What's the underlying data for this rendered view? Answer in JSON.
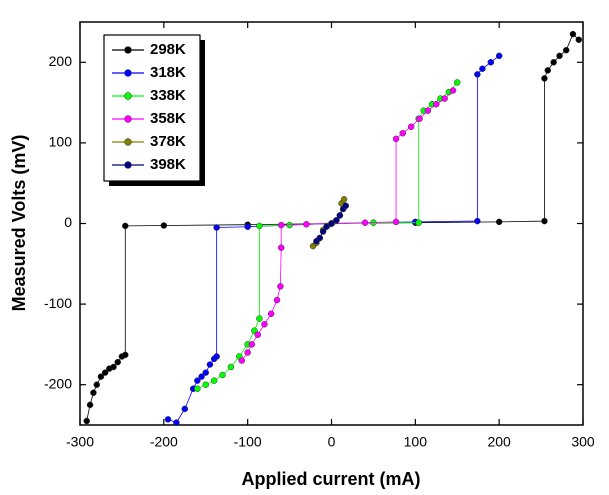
{
  "chart_data": {
    "type": "line",
    "x_label": "Applied current (mA)",
    "y_label": "Measured Volts (mV)",
    "xlim": [
      -300,
      300
    ],
    "xticks": [
      -300,
      -200,
      -100,
      0,
      100,
      200,
      300
    ],
    "ylim": [
      -250,
      250
    ],
    "yticks": [
      -200,
      -100,
      0,
      100,
      200
    ],
    "legend_position": "upper left",
    "series": [
      {
        "name": "298K",
        "color": "#000000",
        "x": [
          -292,
          -288,
          -284,
          -280,
          -275,
          -270,
          -265,
          -260,
          -255,
          -250,
          -246,
          -246,
          -200,
          -100,
          0,
          100,
          200,
          254,
          254,
          258,
          265,
          272,
          280,
          288,
          295
        ],
        "y": [
          -245,
          -225,
          -210,
          -200,
          -190,
          -185,
          -180,
          -178,
          -172,
          -165,
          -163,
          -3,
          -2.5,
          -1.5,
          0,
          1,
          2,
          3,
          180,
          190,
          200,
          208,
          215,
          235,
          228
        ]
      },
      {
        "name": "318K",
        "color": "#0000ff",
        "x": [
          -195,
          -185,
          -175,
          -165,
          -160,
          -155,
          -150,
          -145,
          -140,
          -137,
          -137,
          -100,
          0,
          100,
          174,
          174,
          180,
          190,
          200
        ],
        "y": [
          -243,
          -247,
          -230,
          -205,
          -195,
          -190,
          -185,
          -175,
          -168,
          -165,
          -5,
          -4,
          0,
          2,
          3,
          185,
          192,
          200,
          208
        ]
      },
      {
        "name": "338K",
        "color": "#00ff00",
        "x": [
          -160,
          -150,
          -140,
          -130,
          -120,
          -110,
          -100,
          -92,
          -86,
          -86,
          -50,
          0,
          50,
          104,
          104,
          110,
          120,
          130,
          140,
          150
        ],
        "y": [
          -205,
          -200,
          -195,
          -188,
          -178,
          -165,
          -150,
          -133,
          -118,
          -3,
          -2,
          0,
          1,
          1,
          130,
          140,
          148,
          155,
          163,
          175
        ]
      },
      {
        "name": "358K",
        "color": "#ff00ff",
        "x": [
          -107,
          -100,
          -95,
          -88,
          -80,
          -72,
          -65,
          -61,
          -60,
          -60,
          -30,
          0,
          40,
          77,
          77,
          85,
          95,
          105,
          115,
          125,
          135,
          145
        ],
        "y": [
          -170,
          -160,
          -150,
          -138,
          -125,
          -112,
          -95,
          -78,
          -30,
          -2,
          -1,
          0,
          1,
          2,
          105,
          112,
          120,
          130,
          140,
          148,
          155,
          165
        ]
      },
      {
        "name": "378K",
        "color": "#808000",
        "x": [
          -22,
          -18,
          -14,
          -10,
          -5,
          0,
          5,
          10,
          12,
          15
        ],
        "y": [
          -28,
          -24,
          -18,
          -8,
          -3,
          0,
          3,
          10,
          25,
          30
        ]
      },
      {
        "name": "398K",
        "color": "#000080",
        "x": [
          -18,
          -14,
          -10,
          -6,
          0,
          6,
          10,
          14,
          17
        ],
        "y": [
          -22,
          -18,
          -10,
          -4,
          0,
          4,
          10,
          18,
          22
        ]
      }
    ]
  }
}
